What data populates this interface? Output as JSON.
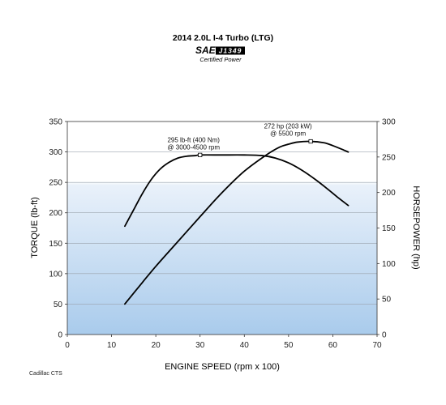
{
  "chart_data": {
    "type": "line",
    "title": "2014 2.0L I-4 Turbo (LTG)",
    "logo": {
      "text": "SAE",
      "standard": "J1349",
      "caption": "Certified Power"
    },
    "xlabel": "ENGINE SPEED (rpm x 100)",
    "ylabel_left": "TORQUE (lb-ft)",
    "ylabel_right": "HORSEPOWER (hp)",
    "xlim": [
      0,
      70
    ],
    "ylim_left": [
      0,
      350
    ],
    "ylim_right": [
      0,
      300
    ],
    "xticks": [
      "0",
      "10",
      "20",
      "30",
      "40",
      "50",
      "60",
      "70"
    ],
    "yticks_left": [
      "0",
      "50",
      "100",
      "150",
      "200",
      "250",
      "300",
      "350"
    ],
    "yticks_right": [
      "0",
      "50",
      "100",
      "150",
      "200",
      "250",
      "300"
    ],
    "grid": true,
    "series": [
      {
        "axis": "left",
        "color": "#000000",
        "x": [
          13,
          15,
          17,
          19,
          21,
          23,
          25,
          27,
          29,
          30,
          35,
          40,
          44,
          47,
          50,
          53,
          56,
          59,
          61,
          63.5
        ],
        "values": [
          178,
          205,
          232,
          255,
          272,
          283,
          290,
          293,
          294,
          295,
          295,
          295,
          294,
          290,
          282,
          270,
          255,
          238,
          226,
          212
        ]
      },
      {
        "axis": "right",
        "color": "#000000",
        "x": [
          13,
          16,
          20,
          25,
          30,
          35,
          40,
          45,
          48,
          50,
          52,
          55,
          58,
          60,
          62,
          63.5
        ],
        "values": [
          43,
          66,
          96,
          131,
          166,
          200,
          230,
          253,
          264,
          268,
          271,
          272,
          270,
          266,
          261,
          257
        ]
      }
    ],
    "annotations": [
      {
        "axis": "left",
        "x": 30,
        "y": 295,
        "lines": [
          "295 lb-ft (400 Nm)",
          "@ 3000-4500 rpm"
        ]
      },
      {
        "axis": "right",
        "x": 55,
        "y": 272,
        "lines": [
          "272 hp (203 kW)",
          "@ 5500 rpm"
        ]
      }
    ]
  },
  "footnote": "Cadillac CTS"
}
